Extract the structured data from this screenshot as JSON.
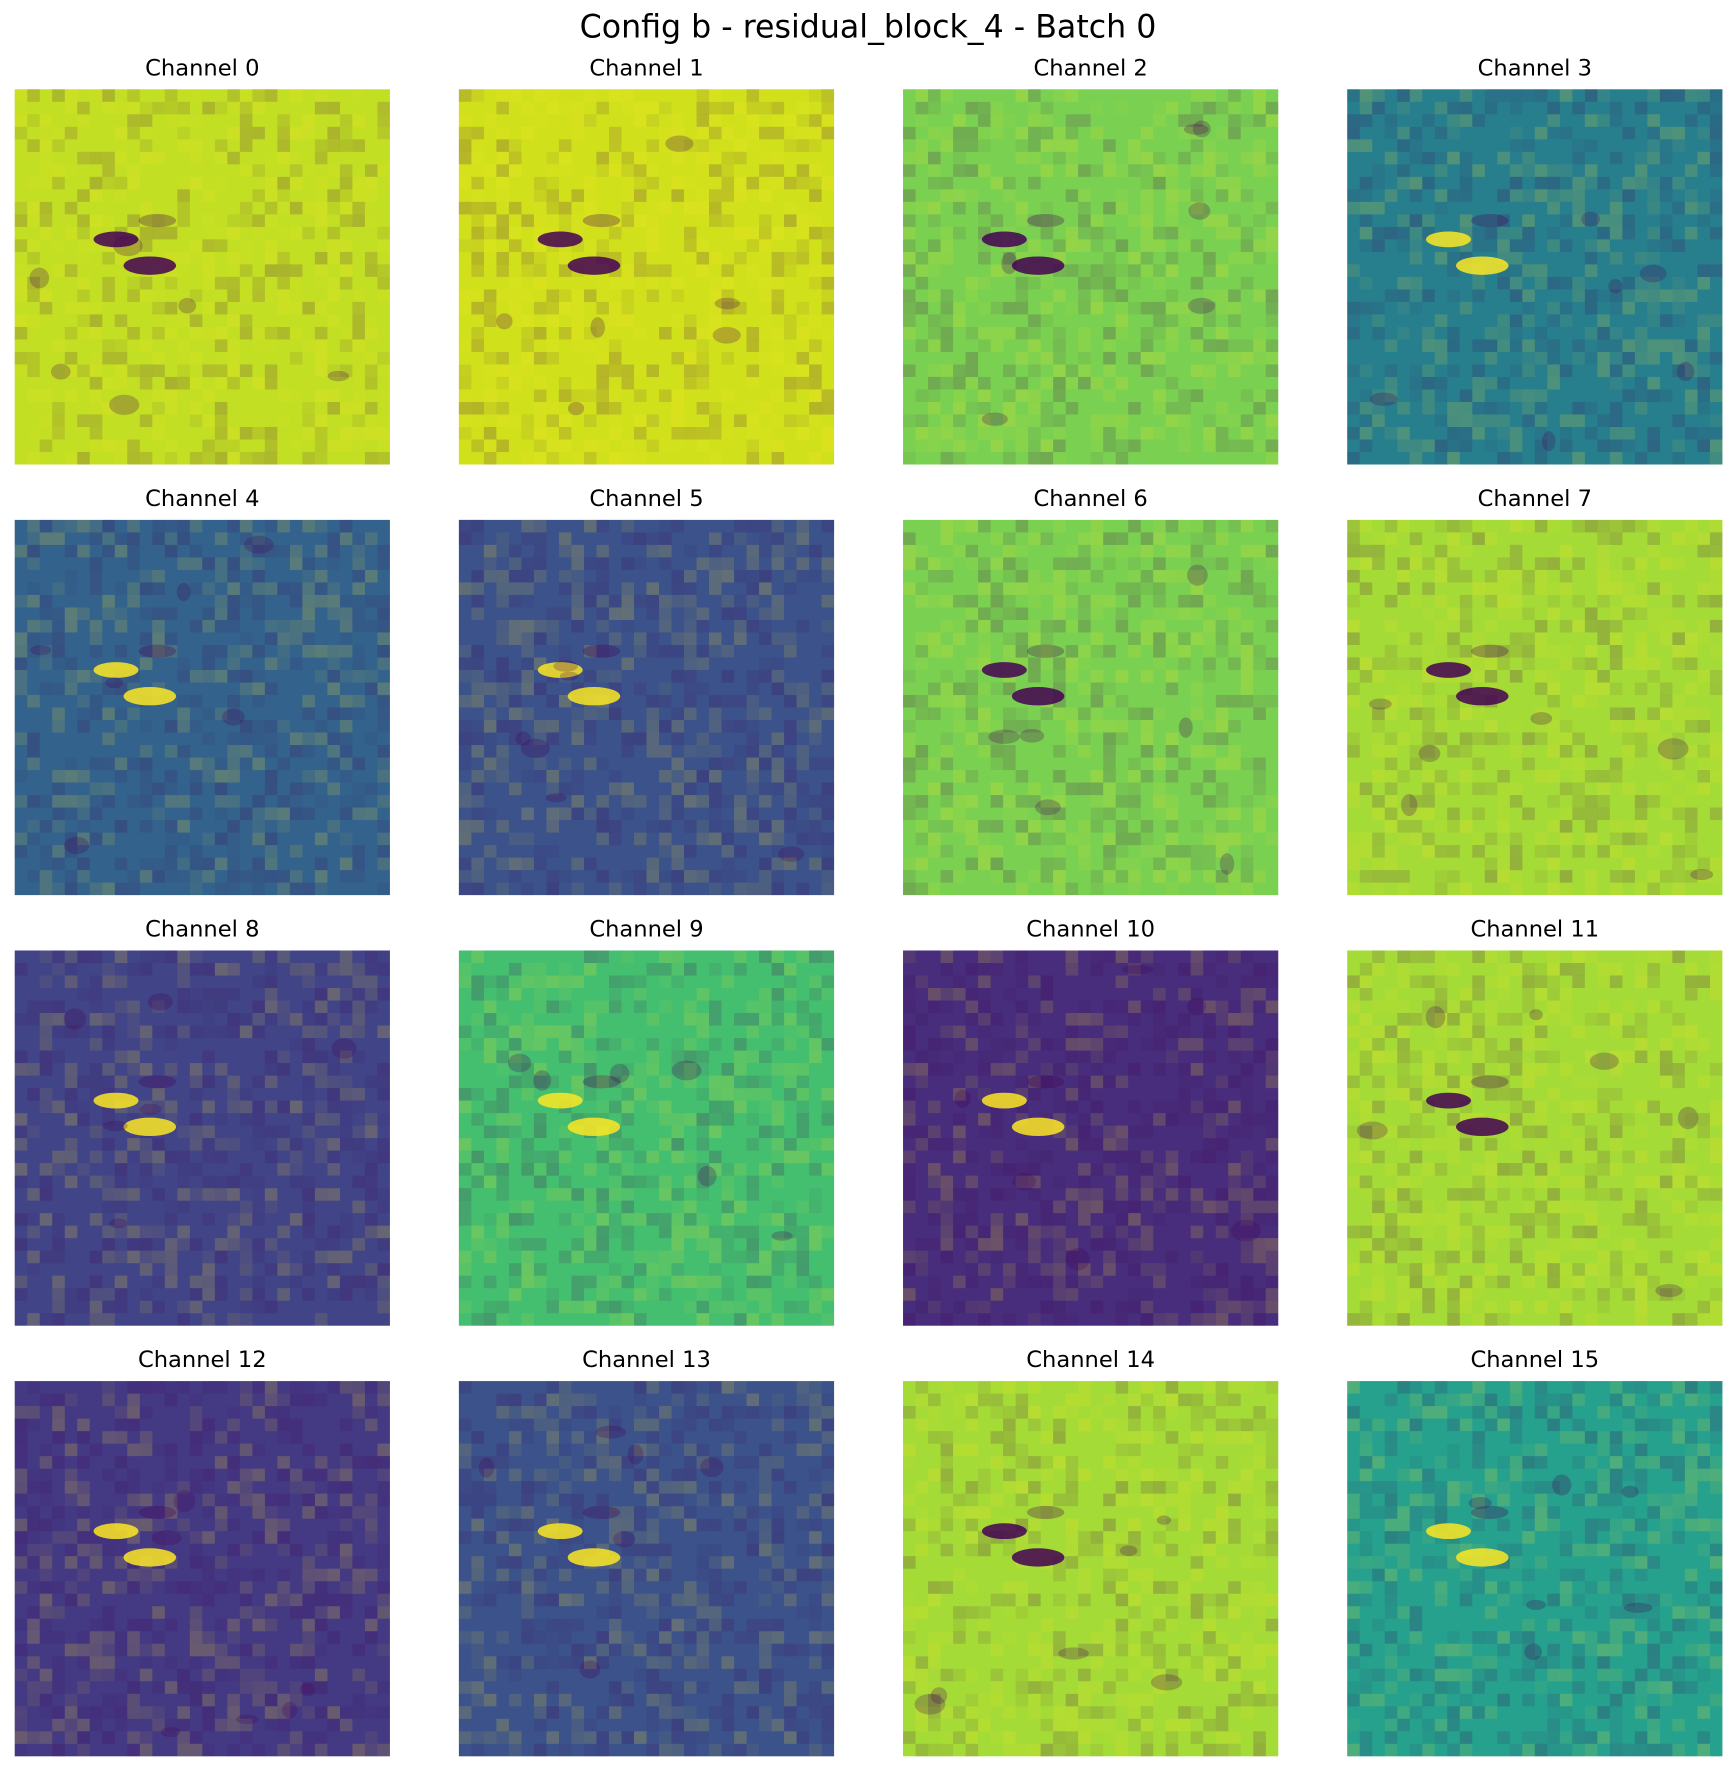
{
  "chart_data": {
    "type": "image-grid",
    "title": "Config b - residual_block_4 - Batch 0",
    "columns": 4,
    "panels": [
      {
        "title": "Channel 0",
        "color": "#c2df23"
      },
      {
        "title": "Channel 1",
        "color": "#d0e11c"
      },
      {
        "title": "Channel 2",
        "color": "#7ad151"
      },
      {
        "title": "Channel 3",
        "color": "#277f8e"
      },
      {
        "title": "Channel 4",
        "color": "#33638d"
      },
      {
        "title": "Channel 5",
        "color": "#3b528b"
      },
      {
        "title": "Channel 6",
        "color": "#7ad151"
      },
      {
        "title": "Channel 7",
        "color": "#a5db36"
      },
      {
        "title": "Channel 8",
        "color": "#414487"
      },
      {
        "title": "Channel 9",
        "color": "#44bf70"
      },
      {
        "title": "Channel 10",
        "color": "#472d7b"
      },
      {
        "title": "Channel 11",
        "color": "#a5db36"
      },
      {
        "title": "Channel 12",
        "color": "#443983"
      },
      {
        "title": "Channel 13",
        "color": "#3b528b"
      },
      {
        "title": "Channel 14",
        "color": "#a5db36"
      },
      {
        "title": "Channel 15",
        "color": "#25a18e"
      }
    ]
  }
}
